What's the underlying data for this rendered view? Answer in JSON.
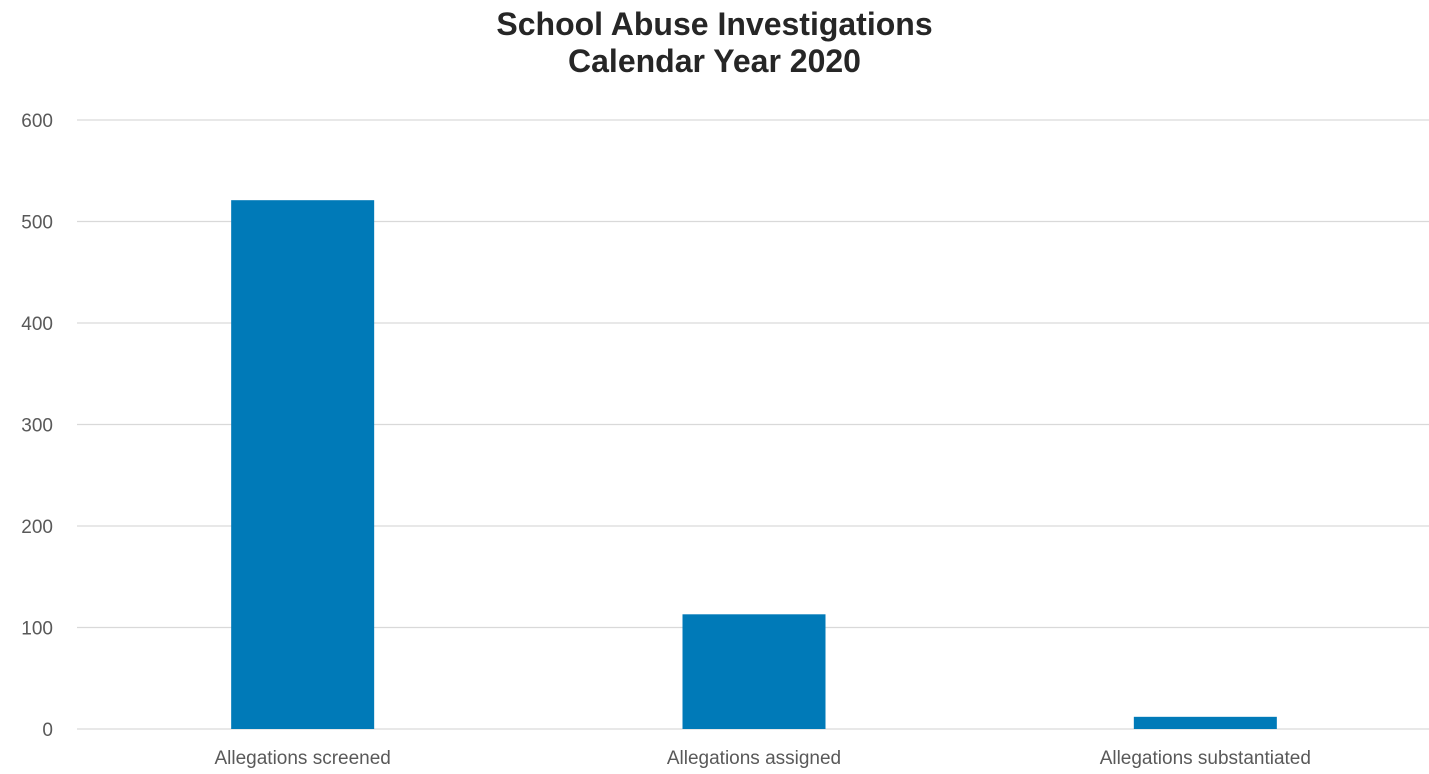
{
  "chart_data": {
    "type": "bar",
    "title_lines": [
      "School Abuse Investigations",
      "Calendar Year 2020"
    ],
    "categories": [
      "Allegations screened",
      "Allegations assigned",
      "Allegations substantiated"
    ],
    "values": [
      521,
      113,
      12
    ],
    "ylim": [
      0,
      600
    ],
    "yticks": [
      0,
      100,
      200,
      300,
      400,
      500,
      600
    ],
    "ytick_labels": [
      "0",
      "100",
      "200",
      "300",
      "400",
      "500",
      "600"
    ],
    "xlabel": "",
    "ylabel": "",
    "grid": true,
    "legend": "none",
    "bar_color": "#007ab8"
  }
}
